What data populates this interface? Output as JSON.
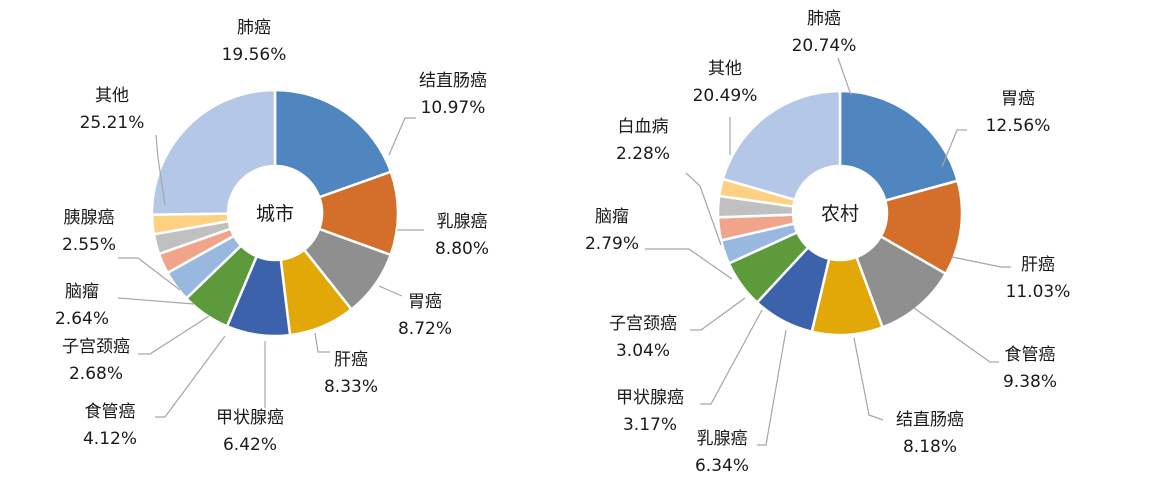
{
  "chart_data": [
    {
      "type": "pie",
      "center_label": "城市",
      "colors": [
        "#4f86bf",
        "#d46e2b",
        "#8f8f8f",
        "#e2a808",
        "#3d62ac",
        "#5d9a3c",
        "#98b8e0",
        "#f0a58b",
        "#c0c0c0",
        "#fdd082",
        "#b4c7e7"
      ],
      "slices": [
        {
          "label": "肺癌",
          "value": 19.56,
          "pct": "19.56%"
        },
        {
          "label": "结直肠癌",
          "value": 10.97,
          "pct": "10.97%"
        },
        {
          "label": "乳腺癌",
          "value": 8.8,
          "pct": "8.80%"
        },
        {
          "label": "胃癌",
          "value": 8.72,
          "pct": "8.72%"
        },
        {
          "label": "肝癌",
          "value": 8.33,
          "pct": "8.33%"
        },
        {
          "label": "甲状腺癌",
          "value": 6.42,
          "pct": "6.42%"
        },
        {
          "label": "食管癌",
          "value": 4.12,
          "pct": "4.12%"
        },
        {
          "label": "子宫颈癌",
          "value": 2.68,
          "pct": "2.68%"
        },
        {
          "label": "脑瘤",
          "value": 2.64,
          "pct": "2.64%"
        },
        {
          "label": "胰腺癌",
          "value": 2.55,
          "pct": "2.55%"
        },
        {
          "label": "其他",
          "value": 25.21,
          "pct": "25.21%"
        }
      ]
    },
    {
      "type": "pie",
      "center_label": "农村",
      "colors": [
        "#4f86bf",
        "#d46e2b",
        "#8f8f8f",
        "#e2a808",
        "#3d62ac",
        "#5d9a3c",
        "#98b8e0",
        "#f0a58b",
        "#c0c0c0",
        "#fdd082",
        "#b4c7e7"
      ],
      "slices": [
        {
          "label": "肺癌",
          "value": 20.74,
          "pct": "20.74%"
        },
        {
          "label": "胃癌",
          "value": 12.56,
          "pct": "12.56%"
        },
        {
          "label": "肝癌",
          "value": 11.03,
          "pct": "11.03%"
        },
        {
          "label": "食管癌",
          "value": 9.38,
          "pct": "9.38%"
        },
        {
          "label": "结直肠癌",
          "value": 8.18,
          "pct": "8.18%"
        },
        {
          "label": "乳腺癌",
          "value": 6.34,
          "pct": "6.34%"
        },
        {
          "label": "甲状腺癌",
          "value": 3.17,
          "pct": "3.17%"
        },
        {
          "label": "子宫颈癌",
          "value": 3.04,
          "pct": "3.04%"
        },
        {
          "label": "脑瘤",
          "value": 2.79,
          "pct": "2.79%"
        },
        {
          "label": "白血病",
          "value": 2.28,
          "pct": "2.28%"
        },
        {
          "label": "其他",
          "value": 20.49,
          "pct": "20.49%"
        }
      ]
    }
  ]
}
